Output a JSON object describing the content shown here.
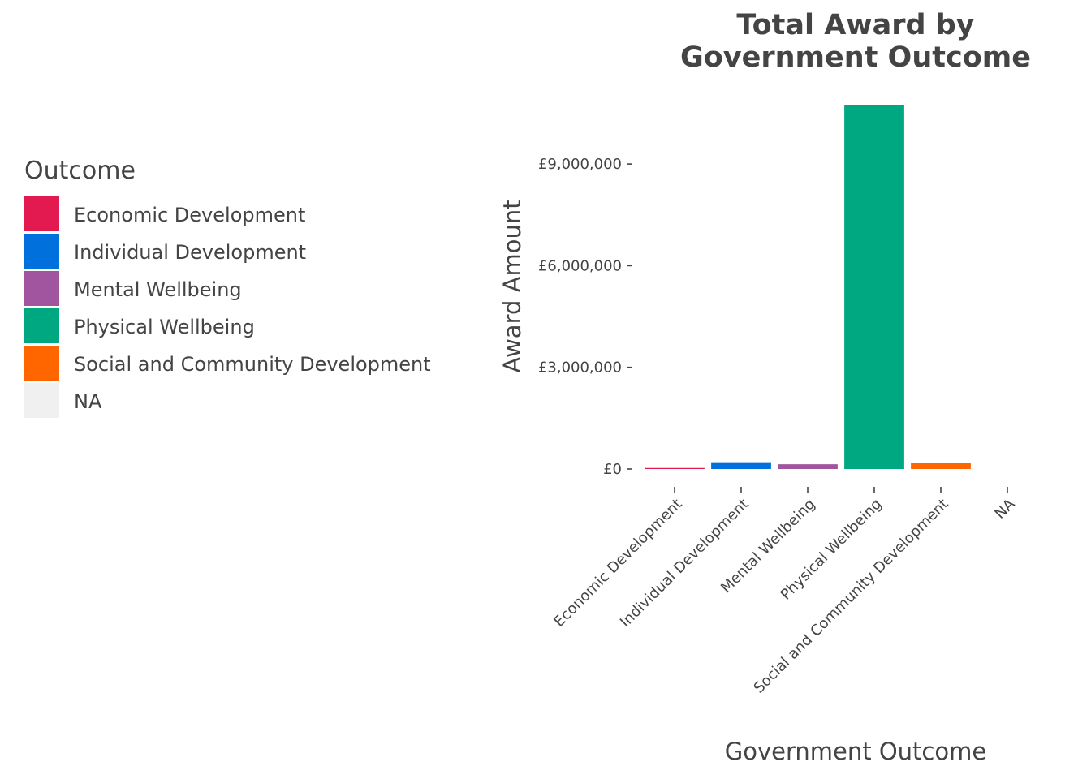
{
  "chart_data": {
    "type": "bar",
    "title_lines": [
      "Total Award by",
      "Government Outcome"
    ],
    "xlabel": "Government Outcome",
    "ylabel": "Award Amount",
    "categories": [
      "Economic Development",
      "Individual Development",
      "Mental Wellbeing",
      "Physical Wellbeing",
      "Social and Community Development",
      "NA"
    ],
    "values": [
      30000,
      200000,
      140000,
      10750000,
      180000,
      0
    ],
    "colors": [
      "#E31A4F",
      "#0071DC",
      "#A0559E",
      "#00A881",
      "#FF6600",
      "#F0F0F0"
    ],
    "ylim": [
      0,
      10750000
    ],
    "yticks": [
      0,
      3000000,
      6000000,
      9000000
    ],
    "ytick_labels": [
      "£0",
      "£3,000,000",
      "£6,000,000",
      "£9,000,000"
    ],
    "grid": false,
    "legend": {
      "title": "Outcome",
      "placement": "left",
      "items": [
        "Economic Development",
        "Individual Development",
        "Mental Wellbeing",
        "Physical Wellbeing",
        "Social and Community Development",
        "NA"
      ]
    }
  }
}
